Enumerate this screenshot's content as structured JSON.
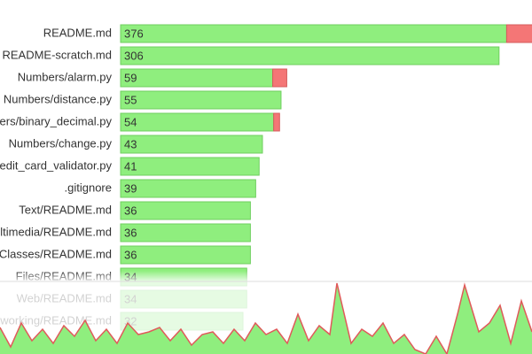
{
  "chart_data": {
    "type": "bar",
    "orientation": "horizontal",
    "scale": "sqrt",
    "xlim": [
      0,
      400
    ],
    "categories": [
      "README.md",
      "README-scratch.md",
      "Numbers/alarm.py",
      "Numbers/distance.py",
      "Numbers/binary_decimal.py",
      "Numbers/change.py",
      "Numbers/credit_card_validator.py",
      ".gitignore",
      "Text/README.md",
      "Multimedia/README.md",
      "Classes/README.md",
      "Files/README.md",
      "Web/README.md",
      "Networking/README.md"
    ],
    "values": [
      376,
      306,
      59,
      55,
      54,
      43,
      41,
      39,
      36,
      36,
      36,
      34,
      34,
      32
    ],
    "deletions": [
      30,
      0,
      5,
      0,
      2,
      0,
      0,
      0,
      0,
      0,
      0,
      0,
      0,
      0
    ],
    "color": "#8fee7e",
    "deletion_color": "#f47676",
    "sparkline": {
      "type": "area",
      "x": [
        0,
        12,
        24,
        36,
        48,
        60,
        72,
        84,
        96,
        108,
        120,
        132,
        144,
        156,
        168,
        180,
        192,
        204,
        216,
        228,
        240,
        252,
        264,
        276,
        288,
        300,
        312,
        324,
        336,
        348,
        360,
        372,
        380,
        396,
        408,
        420,
        432,
        444,
        456,
        468,
        480,
        492,
        504,
        516,
        524,
        540,
        552,
        564,
        576,
        588,
        600
      ],
      "values": [
        30,
        8,
        35,
        15,
        28,
        12,
        32,
        20,
        38,
        15,
        28,
        12,
        35,
        22,
        25,
        30,
        15,
        28,
        10,
        22,
        25,
        12,
        28,
        15,
        35,
        22,
        28,
        12,
        45,
        15,
        32,
        22,
        80,
        12,
        28,
        20,
        35,
        12,
        22,
        5,
        0,
        20,
        0,
        45,
        78,
        25,
        35,
        55,
        12,
        60,
        25
      ],
      "xlim": [
        0,
        600
      ],
      "ylim": [
        0,
        82
      ],
      "color": "#8fee7e",
      "line_color": "#e05a5a"
    }
  }
}
